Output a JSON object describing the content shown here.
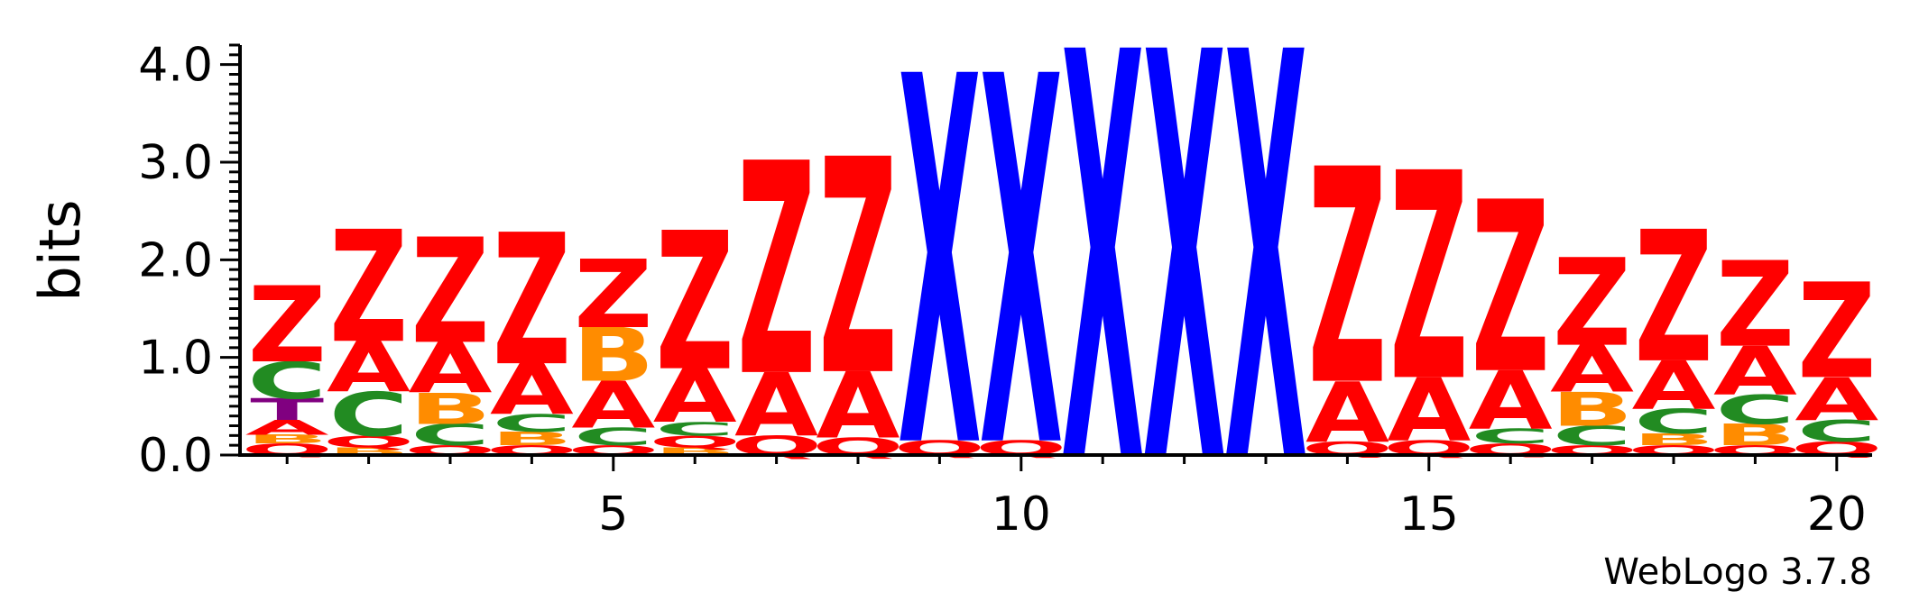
{
  "chart_data": {
    "type": "sequence-logo",
    "ylabel": "bits",
    "ylim": [
      0,
      4.2
    ],
    "y_ticks": [
      "0.0",
      "1.0",
      "2.0",
      "3.0",
      "4.0"
    ],
    "x_ticks": [
      "5",
      "10",
      "15",
      "20"
    ],
    "x_tick_positions": [
      5,
      10,
      15,
      20
    ],
    "credit": "WebLogo 3.7.8",
    "colors": {
      "Z": "#ff0000",
      "A": "#ff0000",
      "Q": "#ff0000",
      "X": "#0000ff",
      "B": "#ff8c00",
      "C": "#228b22",
      "T": "#800080"
    },
    "positions": [
      {
        "pos": 1,
        "letters": [
          [
            "Q",
            0.12
          ],
          [
            "B",
            0.09
          ],
          [
            "A",
            0.15
          ],
          [
            "T",
            0.22
          ],
          [
            "C",
            0.38
          ],
          [
            "Z",
            0.78
          ]
        ]
      },
      {
        "pos": 2,
        "letters": [
          [
            "B",
            0.08
          ],
          [
            "Q",
            0.12
          ],
          [
            "C",
            0.45
          ],
          [
            "A",
            0.52
          ],
          [
            "Z",
            1.15
          ]
        ]
      },
      {
        "pos": 3,
        "letters": [
          [
            "Q",
            0.1
          ],
          [
            "C",
            0.22
          ],
          [
            "B",
            0.32
          ],
          [
            "A",
            0.52
          ],
          [
            "Z",
            1.08
          ]
        ]
      },
      {
        "pos": 4,
        "letters": [
          [
            "Q",
            0.1
          ],
          [
            "B",
            0.14
          ],
          [
            "C",
            0.18
          ],
          [
            "A",
            0.52
          ],
          [
            "Z",
            1.35
          ]
        ]
      },
      {
        "pos": 5,
        "letters": [
          [
            "Q",
            0.1
          ],
          [
            "C",
            0.18
          ],
          [
            "A",
            0.48
          ],
          [
            "B",
            0.55
          ],
          [
            "Z",
            0.7
          ]
        ]
      },
      {
        "pos": 6,
        "letters": [
          [
            "B",
            0.08
          ],
          [
            "Q",
            0.12
          ],
          [
            "C",
            0.14
          ],
          [
            "A",
            0.55
          ],
          [
            "Z",
            1.42
          ]
        ]
      },
      {
        "pos": 7,
        "letters": [
          [
            "Q",
            0.2
          ],
          [
            "A",
            0.65
          ],
          [
            "Z",
            2.18
          ]
        ]
      },
      {
        "pos": 8,
        "letters": [
          [
            "Q",
            0.18
          ],
          [
            "A",
            0.68
          ],
          [
            "Z",
            2.21
          ]
        ]
      },
      {
        "pos": 9,
        "letters": [
          [
            "Q",
            0.15
          ],
          [
            "X",
            3.78
          ]
        ]
      },
      {
        "pos": 10,
        "letters": [
          [
            "Q",
            0.15
          ],
          [
            "X",
            3.78
          ]
        ]
      },
      {
        "pos": 11,
        "letters": [
          [
            "X",
            4.18
          ]
        ]
      },
      {
        "pos": 12,
        "letters": [
          [
            "X",
            4.18
          ]
        ]
      },
      {
        "pos": 13,
        "letters": [
          [
            "X",
            4.18
          ]
        ]
      },
      {
        "pos": 14,
        "letters": [
          [
            "Q",
            0.14
          ],
          [
            "A",
            0.62
          ],
          [
            "Z",
            2.21
          ]
        ]
      },
      {
        "pos": 15,
        "letters": [
          [
            "Q",
            0.15
          ],
          [
            "A",
            0.65
          ],
          [
            "Z",
            2.13
          ]
        ]
      },
      {
        "pos": 16,
        "letters": [
          [
            "Q",
            0.12
          ],
          [
            "C",
            0.15
          ],
          [
            "A",
            0.6
          ],
          [
            "Z",
            1.76
          ]
        ]
      },
      {
        "pos": 17,
        "letters": [
          [
            "Q",
            0.1
          ],
          [
            "C",
            0.2
          ],
          [
            "B",
            0.35
          ],
          [
            "A",
            0.48
          ],
          [
            "Z",
            0.9
          ]
        ]
      },
      {
        "pos": 18,
        "letters": [
          [
            "Q",
            0.1
          ],
          [
            "B",
            0.12
          ],
          [
            "C",
            0.25
          ],
          [
            "A",
            0.5
          ],
          [
            "Z",
            1.35
          ]
        ]
      },
      {
        "pos": 19,
        "letters": [
          [
            "Q",
            0.1
          ],
          [
            "B",
            0.22
          ],
          [
            "C",
            0.3
          ],
          [
            "A",
            0.5
          ],
          [
            "Z",
            0.88
          ]
        ]
      },
      {
        "pos": 20,
        "letters": [
          [
            "Q",
            0.14
          ],
          [
            "C",
            0.22
          ],
          [
            "A",
            0.44
          ],
          [
            "Z",
            0.98
          ]
        ]
      }
    ]
  }
}
